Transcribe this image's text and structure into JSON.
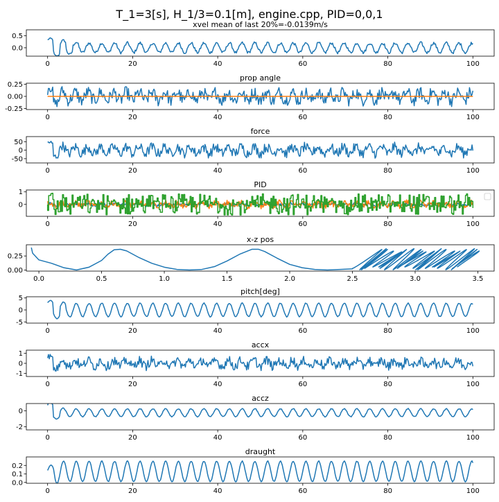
{
  "figure": {
    "suptitle": "T_1=3[s], H_1/3=0.1[m], engine.cpp, PID=0,0,1"
  },
  "colors": {
    "series_blue": "#1f77b4",
    "series_orange": "#ff7f0e",
    "series_green": "#2ca02c",
    "axes": "#000000",
    "background": "#ffffff"
  },
  "chart_data": [
    {
      "type": "line",
      "title": "xvel mean of last 20%=-0.0139m/s",
      "xlim": [
        -5,
        105
      ],
      "ylim": [
        -0.35,
        0.75
      ],
      "xticks": [
        0,
        20,
        40,
        60,
        80,
        100
      ],
      "yticks": [
        0.0,
        0.5
      ],
      "ytick_labels": [
        "0.0",
        "0.5"
      ],
      "series": [
        {
          "color": "#1f77b4",
          "kind": "osc",
          "offset": 0.0,
          "amplitude": 0.2,
          "period": 3,
          "noise": 0.06,
          "transient": [
            0.55,
            8
          ]
        }
      ]
    },
    {
      "type": "line",
      "title": "prop angle",
      "xlim": [
        -5,
        105
      ],
      "ylim": [
        -0.27,
        0.27
      ],
      "xticks": [
        0,
        20,
        40,
        60,
        80,
        100
      ],
      "yticks": [
        -0.25,
        0.0,
        0.25
      ],
      "ytick_labels": [
        "-0.25",
        "0.00",
        "0.25"
      ],
      "series": [
        {
          "color": "#1f77b4",
          "kind": "noise",
          "offset": 0.0,
          "amplitude": 0.14,
          "transient": [
            0.26,
            5
          ]
        },
        {
          "color": "#ff7f0e",
          "kind": "const",
          "value": 0.0
        }
      ]
    },
    {
      "type": "line",
      "title": "force",
      "xlim": [
        -5,
        105
      ],
      "ylim": [
        -75,
        80
      ],
      "xticks": [
        0,
        20,
        40,
        60,
        80,
        100
      ],
      "yticks": [
        -50,
        0,
        50
      ],
      "ytick_labels": [
        "-50",
        "0",
        "50"
      ],
      "series": [
        {
          "color": "#1f77b4",
          "kind": "noise",
          "offset": 0.0,
          "amplitude": 32,
          "transient": [
            70,
            5
          ]
        }
      ]
    },
    {
      "type": "line",
      "title": "PID",
      "xlim": [
        -5,
        105
      ],
      "ylim": [
        -0.95,
        1.15
      ],
      "xticks": [
        0,
        20,
        40,
        60,
        80,
        100
      ],
      "yticks": [
        0,
        1
      ],
      "ytick_labels": [
        "0",
        "1"
      ],
      "legend": "top-right (empty)",
      "series": [
        {
          "color": "#1f77b4",
          "kind": "noise",
          "offset": 0.0,
          "amplitude": 0.12
        },
        {
          "color": "#ff7f0e",
          "kind": "noise",
          "offset": 0.0,
          "amplitude": 0.25
        },
        {
          "color": "#2ca02c",
          "kind": "step",
          "offset": 0.0,
          "amplitude": 0.85,
          "transient": [
            1.05,
            10
          ]
        }
      ]
    },
    {
      "type": "line",
      "title": "x-z pos",
      "xlim": [
        -0.1,
        3.63
      ],
      "ylim": [
        -0.02,
        0.45
      ],
      "xticks": [
        0.0,
        0.5,
        1.0,
        1.5,
        2.0,
        2.5,
        3.0,
        3.5
      ],
      "xtick_labels": [
        "0.0",
        "0.5",
        "1.0",
        "1.5",
        "2.0",
        "2.5",
        "3.0",
        "3.5"
      ],
      "yticks": [
        0.0,
        0.25
      ],
      "ytick_labels": [
        "0.00",
        "0.25"
      ],
      "series": [
        {
          "color": "#1f77b4",
          "kind": "path",
          "x": [
            -0.06,
            -0.05,
            0.0,
            0.1,
            0.2,
            0.3,
            0.4,
            0.5,
            0.55,
            0.6,
            0.65,
            0.7,
            0.8,
            0.9,
            1.0,
            1.1,
            1.2,
            1.3,
            1.4,
            1.5,
            1.6,
            1.7,
            1.75,
            1.8,
            1.9,
            2.0,
            2.1,
            2.2,
            2.3,
            2.4,
            2.5
          ],
          "y": [
            0.4,
            0.3,
            0.18,
            0.12,
            0.04,
            0.0,
            0.05,
            0.17,
            0.28,
            0.36,
            0.37,
            0.34,
            0.22,
            0.12,
            0.05,
            0.01,
            0.0,
            0.01,
            0.06,
            0.16,
            0.28,
            0.37,
            0.37,
            0.33,
            0.21,
            0.1,
            0.04,
            0.01,
            0.0,
            0.01,
            0.02
          ],
          "loops": {
            "x_start": 2.5,
            "x_end": 3.55,
            "x_radius": 0.1,
            "y_center": 0.19,
            "y_radius": 0.19,
            "count": 22
          }
        }
      ]
    },
    {
      "type": "line",
      "title": "pitch[deg]",
      "xlim": [
        -5,
        105
      ],
      "ylim": [
        -5.5,
        5.5
      ],
      "xticks": [
        0,
        20,
        40,
        60,
        80,
        100
      ],
      "yticks": [
        -5,
        0,
        5
      ],
      "ytick_labels": [
        "-5",
        "0",
        "5"
      ],
      "series": [
        {
          "color": "#1f77b4",
          "kind": "osc",
          "offset": 0.0,
          "amplitude": 2.8,
          "period": 3,
          "noise": 0.2,
          "transient": [
            5,
            6
          ]
        }
      ]
    },
    {
      "type": "line",
      "title": "accx",
      "xlim": [
        -5,
        105
      ],
      "ylim": [
        -1.3,
        1.3
      ],
      "xticks": [
        0,
        20,
        40,
        60,
        80,
        100
      ],
      "yticks": [
        -1,
        0,
        1
      ],
      "ytick_labels": [
        "-1",
        "0",
        "1"
      ],
      "series": [
        {
          "color": "#1f77b4",
          "kind": "noise",
          "offset": 0.0,
          "amplitude": 0.5,
          "transient": [
            1.1,
            5
          ]
        }
      ]
    },
    {
      "type": "line",
      "title": "accz",
      "xlim": [
        -5,
        105
      ],
      "ylim": [
        -2.4,
        0.9
      ],
      "xticks": [
        0,
        20,
        40,
        60,
        80,
        100
      ],
      "yticks": [
        -2,
        0
      ],
      "ytick_labels": [
        "-2",
        "0"
      ],
      "series": [
        {
          "color": "#1f77b4",
          "kind": "osc",
          "offset": -0.25,
          "amplitude": 0.5,
          "period": 3,
          "noise": 0.05,
          "transient": [
            1.8,
            4
          ]
        }
      ]
    },
    {
      "type": "line",
      "title": "draught",
      "xlim": [
        -5,
        105
      ],
      "ylim": [
        -0.01,
        0.3
      ],
      "xticks": [
        0,
        20,
        40,
        60,
        80,
        100
      ],
      "yticks": [
        0.0,
        0.1,
        0.2
      ],
      "ytick_labels": [
        "0.0",
        "0.1",
        "0.2"
      ],
      "series": [
        {
          "color": "#1f77b4",
          "kind": "osc",
          "offset": 0.13,
          "amplitude": 0.12,
          "period": 3,
          "noise": 0.005,
          "transient": [
            0.15,
            3
          ]
        }
      ]
    }
  ]
}
